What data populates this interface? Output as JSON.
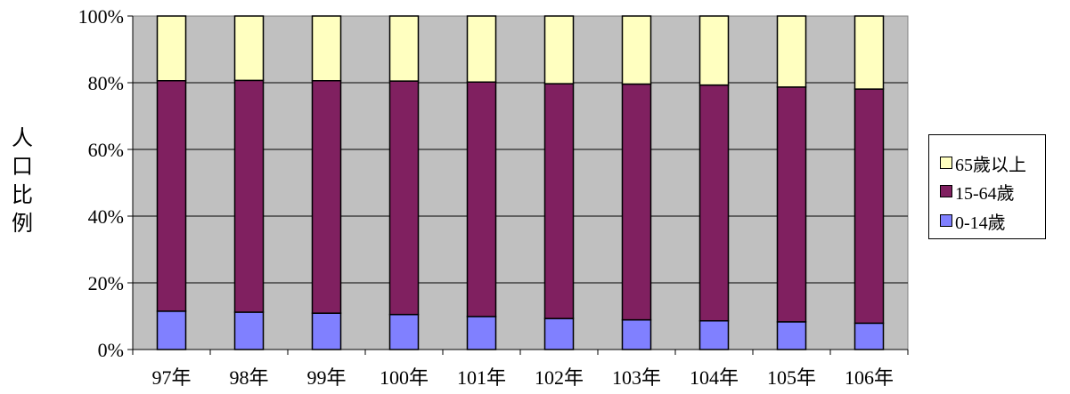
{
  "chart_data": {
    "type": "bar",
    "stacked": true,
    "percent": true,
    "categories": [
      "97年",
      "98年",
      "99年",
      "100年",
      "101年",
      "102年",
      "103年",
      "104年",
      "105年",
      "106年"
    ],
    "series": [
      {
        "name": "0-14歲",
        "color": "#8080ff",
        "values": [
          11.5,
          11.2,
          10.9,
          10.5,
          9.9,
          9.3,
          8.9,
          8.6,
          8.3,
          7.9
        ]
      },
      {
        "name": "15-64歲",
        "color": "#802060",
        "values": [
          69.1,
          69.5,
          69.7,
          70.0,
          70.3,
          70.4,
          70.7,
          70.7,
          70.4,
          70.2
        ]
      },
      {
        "name": "65歲以上",
        "color": "#ffffc0",
        "values": [
          19.4,
          19.3,
          19.4,
          19.5,
          19.8,
          20.3,
          20.4,
          20.7,
          21.3,
          21.9
        ]
      }
    ],
    "yticks": [
      "0%",
      "20%",
      "40%",
      "60%",
      "80%",
      "100%"
    ],
    "ylim": [
      0,
      100
    ],
    "ylabel": "人口比例",
    "ylabel_chars": [
      "人",
      "口",
      "比",
      "例"
    ],
    "grid": true,
    "plot_background": "#c0c0c0",
    "legend_position": "right",
    "legend_order": [
      "65歲以上",
      "15-64歲",
      "0-14歲"
    ]
  }
}
